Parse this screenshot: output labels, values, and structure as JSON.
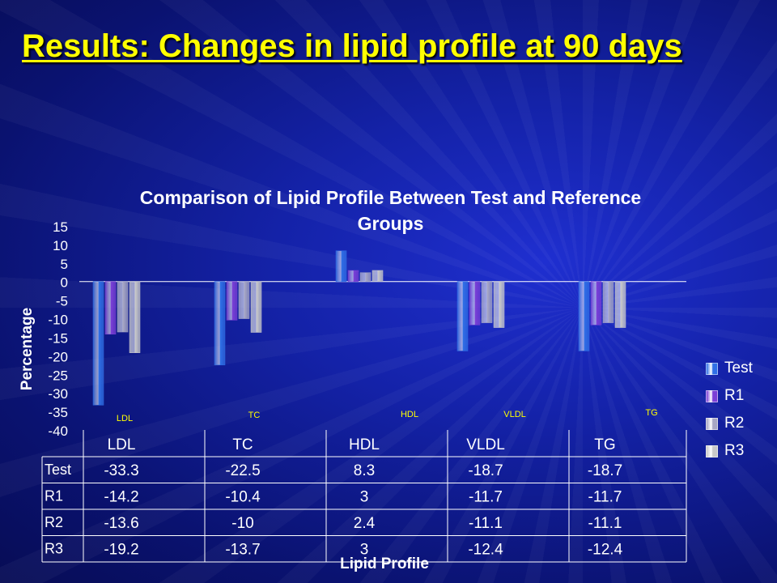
{
  "slide": {
    "title": "Results: Changes in lipid profile at 90 days"
  },
  "colors": {
    "background": "#1422a8",
    "title_text": "#ffff00",
    "category_label": "#ffff00",
    "series": [
      "#2f6fe6",
      "#7b3fd6",
      "#a7a7c4",
      "#c9c9c9"
    ]
  },
  "chart_data": {
    "type": "bar",
    "title": "Comparison of Lipid Profile Between Test and Reference Groups",
    "xlabel": "Lipid Profile",
    "ylabel": "Percentage",
    "categories": [
      "LDL",
      "TC",
      "HDL",
      "VLDL",
      "TG"
    ],
    "series": [
      {
        "name": "Test",
        "values": [
          -33.3,
          -22.5,
          8.3,
          -18.7,
          -18.7
        ]
      },
      {
        "name": "R1",
        "values": [
          -14.2,
          -10.4,
          3,
          -11.7,
          -11.7
        ]
      },
      {
        "name": "R2",
        "values": [
          -13.6,
          -10,
          2.4,
          -11.1,
          -11.1
        ]
      },
      {
        "name": "R3",
        "values": [
          -19.2,
          -13.7,
          3,
          -12.4,
          -12.4
        ]
      }
    ],
    "ylim": [
      -40,
      15
    ],
    "yticks": [
      15,
      10,
      5,
      0,
      -5,
      -10,
      -15,
      -20,
      -25,
      -30,
      -35,
      -40
    ],
    "grid": false,
    "legend_position": "right",
    "data_table": true
  }
}
